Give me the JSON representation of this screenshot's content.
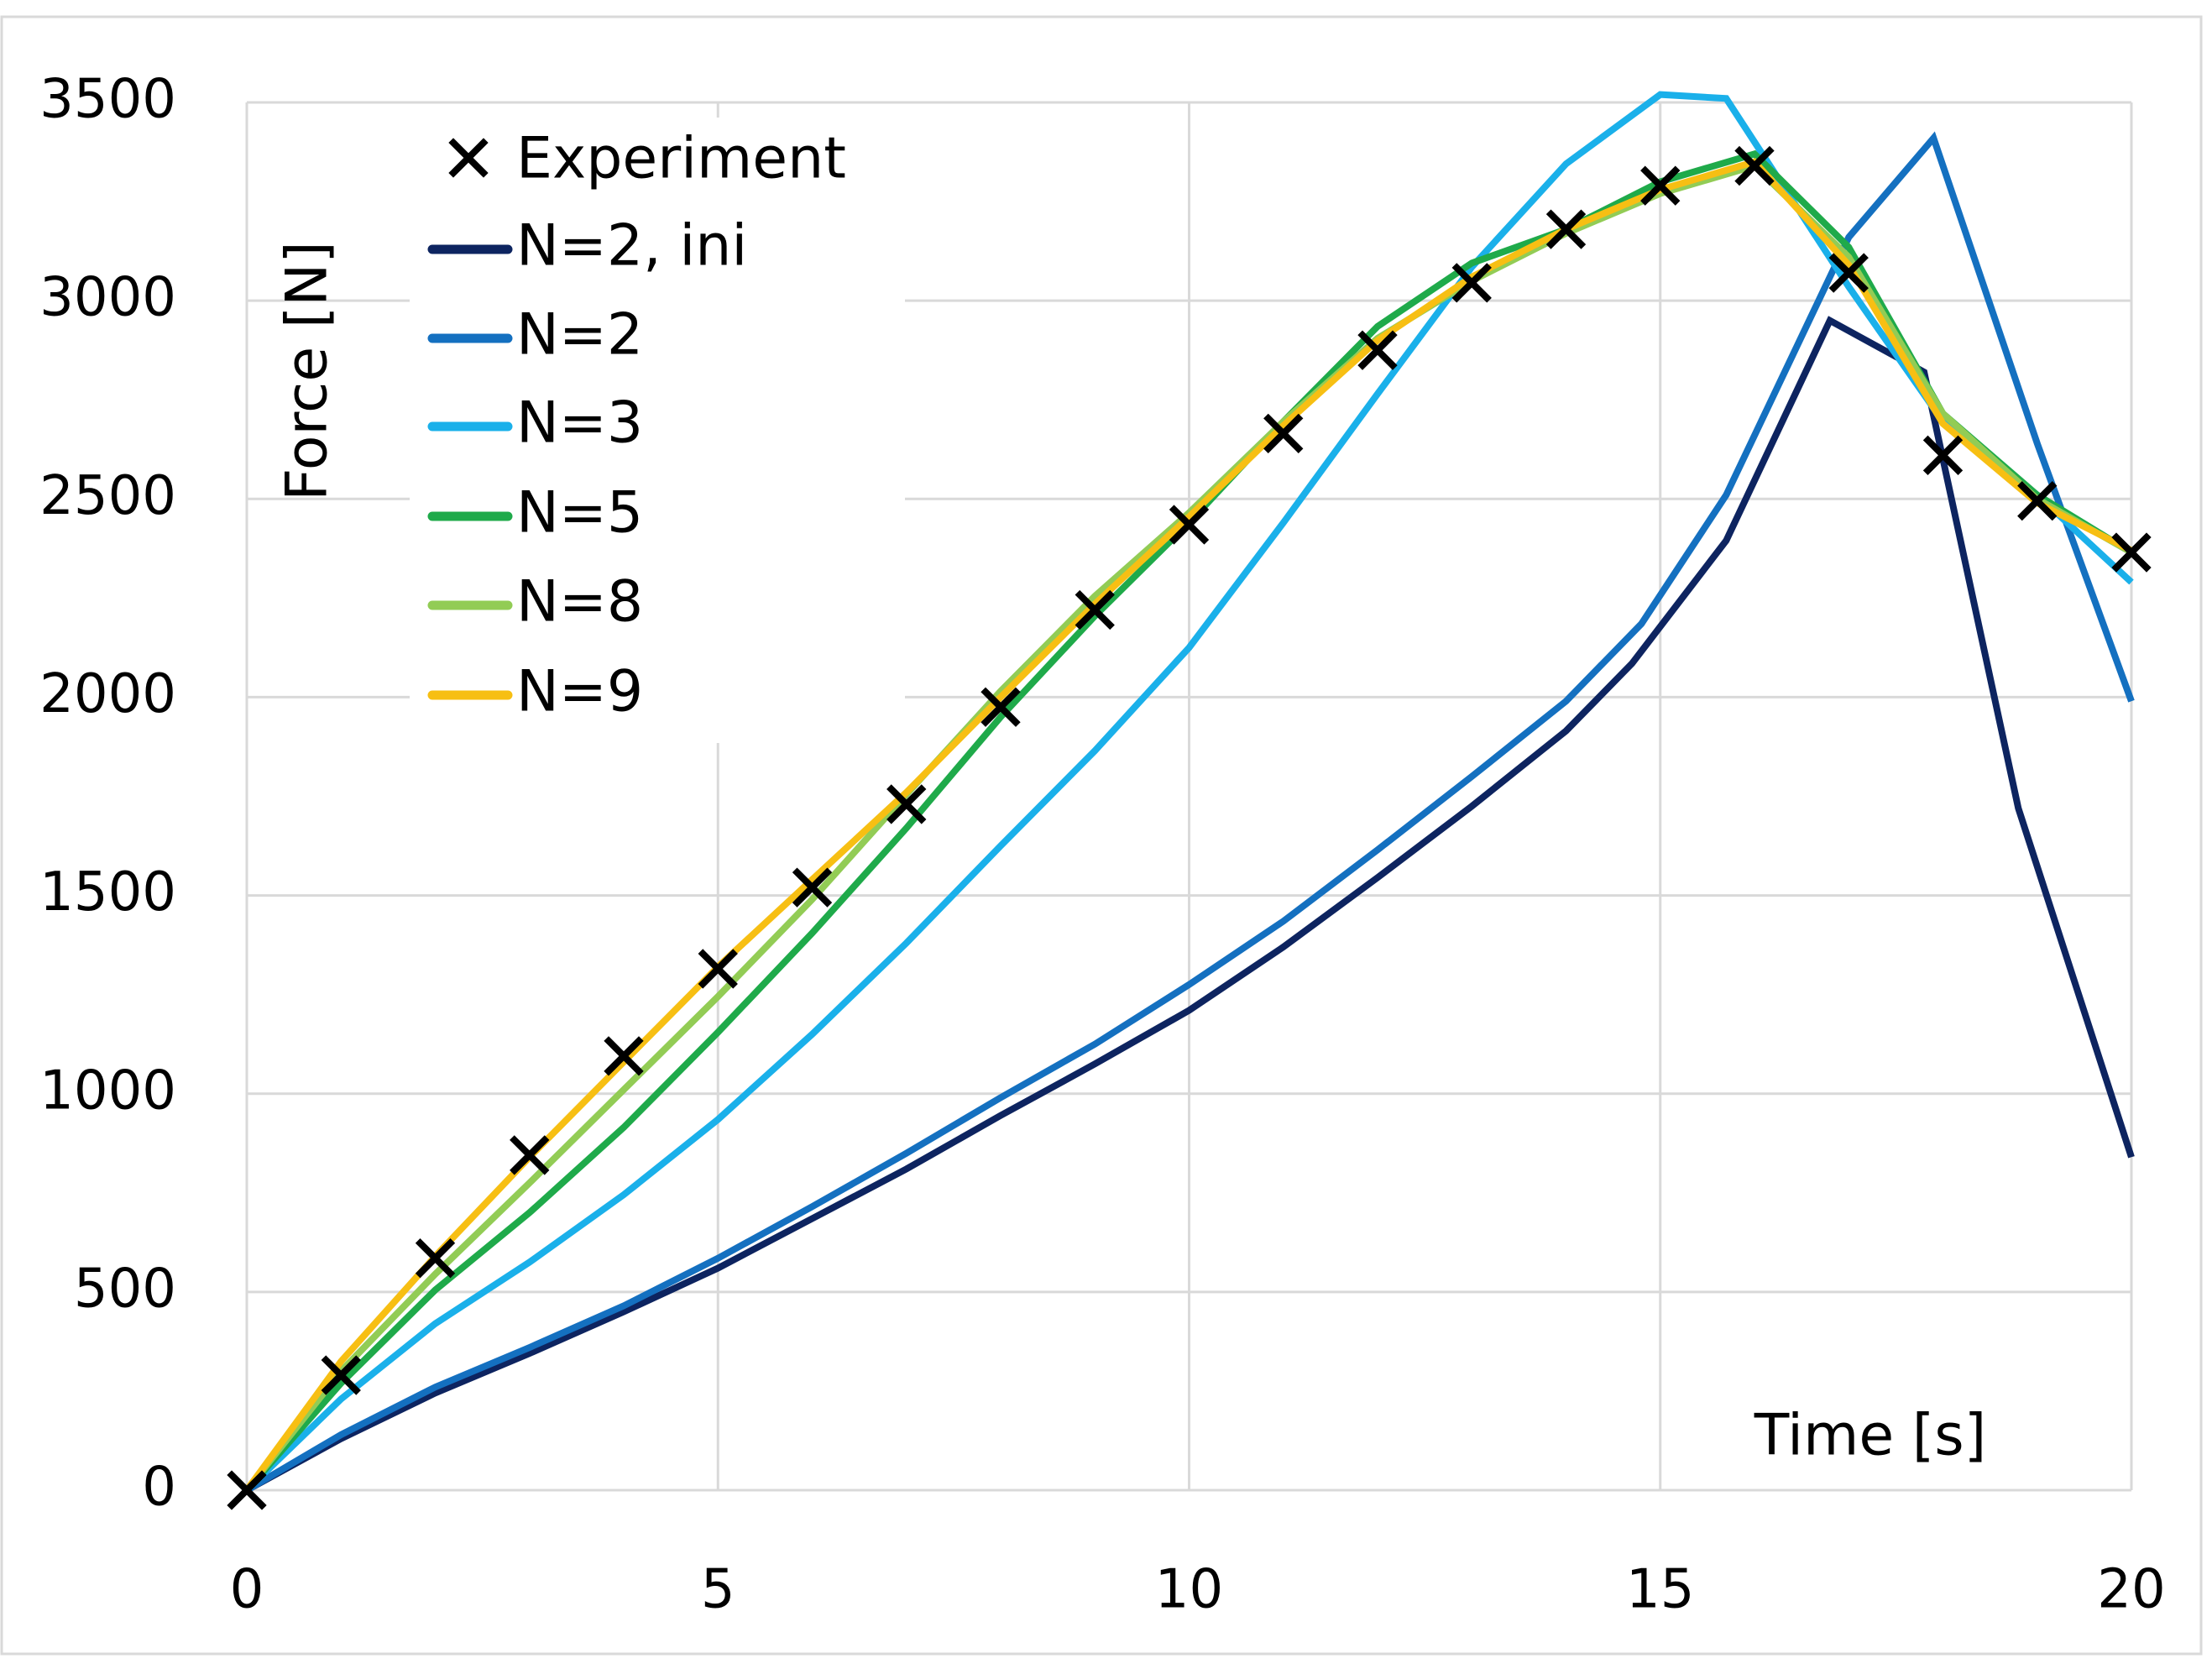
{
  "chart_data": {
    "type": "line",
    "title": "",
    "xlabel": "Time [s]",
    "ylabel": "Force [N]",
    "xlim": [
      0,
      20
    ],
    "ylim": [
      0,
      3500
    ],
    "xticks": [
      0,
      5,
      10,
      15,
      20
    ],
    "yticks": [
      0,
      500,
      1000,
      1500,
      2000,
      2500,
      3000,
      3500
    ],
    "xtick_labels": [
      "0",
      "5",
      "10",
      "15",
      "20"
    ],
    "ytick_labels": [
      "0",
      "500",
      "1000",
      "1500",
      "2000",
      "2500",
      "3000",
      "3500"
    ],
    "grid": true,
    "legend_position": "top-left",
    "series": [
      {
        "name": "Experiment",
        "style": "marker",
        "color": "#000000",
        "x": [
          0,
          1,
          2,
          3,
          4,
          5,
          6,
          7,
          8,
          9,
          10,
          11,
          12,
          13,
          14,
          15,
          16,
          17,
          18,
          19,
          20
        ],
        "values": [
          0,
          290,
          585,
          845,
          1095,
          1315,
          1520,
          1730,
          1975,
          2220,
          2435,
          2665,
          2875,
          3045,
          3180,
          3290,
          3340,
          3070,
          2610,
          2495,
          2365
        ]
      },
      {
        "name": "N=2, ini",
        "style": "line",
        "color": "#0d2460",
        "x": [
          0,
          1,
          2,
          3,
          4,
          5,
          6,
          7,
          8,
          9,
          10,
          11,
          12,
          13,
          14,
          14.7,
          15.7,
          16.8,
          17.8,
          18.8,
          20
        ],
        "values": [
          0,
          130,
          245,
          345,
          450,
          560,
          685,
          810,
          945,
          1075,
          1210,
          1370,
          1545,
          1725,
          1915,
          2085,
          2395,
          2950,
          2820,
          1720,
          840
        ]
      },
      {
        "name": "N=2",
        "style": "line",
        "color": "#1470c0",
        "x": [
          0,
          1,
          2,
          3,
          4,
          5,
          6,
          7,
          8,
          9,
          10,
          11,
          12,
          13,
          14,
          14.8,
          15.7,
          17,
          17.9,
          19,
          20
        ],
        "values": [
          0,
          140,
          260,
          360,
          465,
          585,
          715,
          850,
          990,
          1125,
          1275,
          1435,
          1615,
          1800,
          1990,
          2185,
          2510,
          3160,
          3410,
          2640,
          1990
        ]
      },
      {
        "name": "N=3",
        "style": "line",
        "color": "#1ab0ea",
        "x": [
          0,
          1,
          2,
          3,
          4,
          5,
          6,
          7,
          8,
          9,
          10,
          11,
          12,
          13,
          14,
          15,
          15.7,
          17,
          18,
          19,
          20
        ],
        "values": [
          0,
          230,
          420,
          575,
          745,
          935,
          1150,
          1380,
          1625,
          1865,
          2125,
          2440,
          2765,
          3085,
          3345,
          3520,
          3510,
          3035,
          2695,
          2510,
          2290
        ]
      },
      {
        "name": "N=5",
        "style": "line",
        "color": "#1faa4a",
        "x": [
          0,
          1,
          2,
          3,
          4,
          5,
          6,
          7,
          8,
          9,
          10,
          11,
          12,
          13,
          14,
          15,
          16,
          17,
          18,
          19,
          20
        ],
        "values": [
          0,
          270,
          505,
          700,
          915,
          1155,
          1405,
          1670,
          1950,
          2205,
          2440,
          2695,
          2935,
          3095,
          3180,
          3300,
          3370,
          3135,
          2715,
          2510,
          2365
        ]
      },
      {
        "name": "N=8",
        "style": "line",
        "color": "#92cc55",
        "x": [
          0,
          1,
          2,
          3,
          4,
          5,
          6,
          7,
          8,
          9,
          10,
          11,
          12,
          13,
          14,
          15,
          16,
          17,
          18,
          19,
          20
        ],
        "values": [
          0,
          300,
          545,
          775,
          1010,
          1245,
          1490,
          1755,
          2015,
          2255,
          2465,
          2695,
          2905,
          3050,
          3170,
          3270,
          3340,
          3110,
          2715,
          2500,
          2365
        ]
      },
      {
        "name": "N=9",
        "style": "line",
        "color": "#f7bf13",
        "x": [
          0,
          1,
          2,
          3,
          4,
          5,
          6,
          7,
          8,
          9,
          10,
          11,
          12,
          13,
          14,
          15,
          16,
          17,
          18,
          19,
          20
        ],
        "values": [
          0,
          325,
          590,
          840,
          1080,
          1320,
          1540,
          1760,
          2000,
          2235,
          2455,
          2685,
          2900,
          3060,
          3180,
          3280,
          3350,
          3090,
          2690,
          2490,
          2370
        ]
      }
    ]
  },
  "colors": {
    "grid": "#d9d9d9",
    "frame": "#d9d9d9",
    "text": "#000000"
  }
}
